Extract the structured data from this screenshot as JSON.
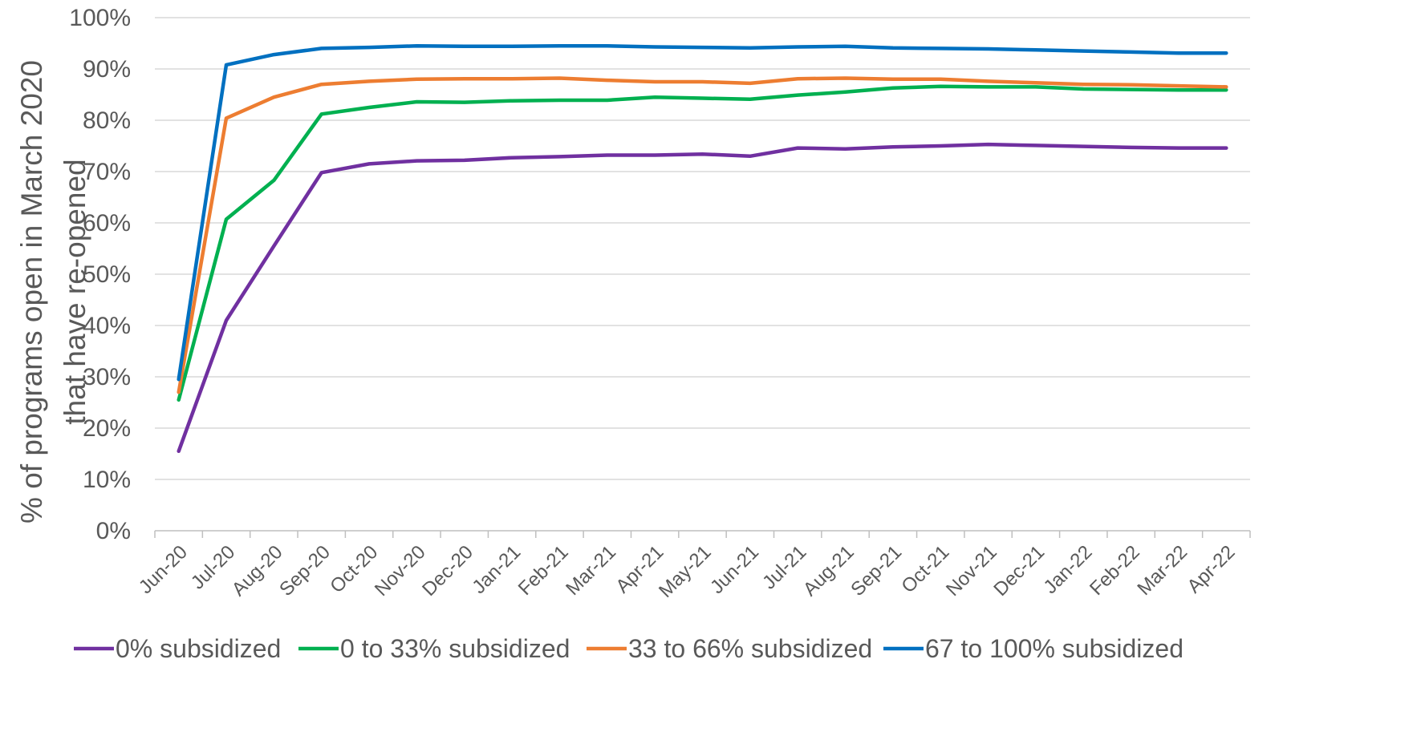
{
  "chart_data": {
    "type": "line",
    "title": "",
    "xlabel": "",
    "ylabel_line1": "% of programs open in March 2020",
    "ylabel_line2": "that have re-opened",
    "ylim": [
      0,
      100
    ],
    "y_ticks": [
      "0%",
      "10%",
      "20%",
      "30%",
      "40%",
      "50%",
      "60%",
      "70%",
      "80%",
      "90%",
      "100%"
    ],
    "grid": true,
    "legend_position": "bottom",
    "x": [
      "Jun-20",
      "Jul-20",
      "Aug-20",
      "Sep-20",
      "Oct-20",
      "Nov-20",
      "Dec-20",
      "Jan-21",
      "Feb-21",
      "Mar-21",
      "Apr-21",
      "May-21",
      "Jun-21",
      "Jul-21",
      "Aug-21",
      "Sep-21",
      "Oct-21",
      "Nov-21",
      "Dec-21",
      "Jan-22",
      "Feb-22",
      "Mar-22",
      "Apr-22"
    ],
    "series": [
      {
        "name": "0% subsidized",
        "color": "#7030A0",
        "values": [
          15.5,
          41,
          55.5,
          69.8,
          71.5,
          72.1,
          72.2,
          72.7,
          72.9,
          73.2,
          73.2,
          73.4,
          73,
          74.6,
          74.4,
          74.8,
          75,
          75.3,
          75.1,
          74.9,
          74.7,
          74.6,
          74.6
        ]
      },
      {
        "name": "0 to 33% subsidized",
        "color": "#00B050",
        "values": [
          25.5,
          60.7,
          68.3,
          81.2,
          82.5,
          83.6,
          83.5,
          83.8,
          83.9,
          83.9,
          84.5,
          84.3,
          84.1,
          84.9,
          85.5,
          86.3,
          86.6,
          86.5,
          86.5,
          86.1,
          86,
          85.9,
          85.9
        ]
      },
      {
        "name": "33 to 66% subsidized",
        "color": "#ED7D31",
        "values": [
          27,
          80.4,
          84.5,
          87,
          87.6,
          88,
          88.1,
          88.1,
          88.2,
          87.8,
          87.5,
          87.5,
          87.2,
          88.1,
          88.2,
          88,
          88,
          87.6,
          87.3,
          87,
          86.9,
          86.7,
          86.5
        ]
      },
      {
        "name": "67 to 100% subsidized",
        "color": "#0070C0",
        "values": [
          29.5,
          90.8,
          92.8,
          94,
          94.2,
          94.5,
          94.4,
          94.4,
          94.5,
          94.5,
          94.3,
          94.2,
          94.1,
          94.3,
          94.4,
          94.1,
          94,
          93.9,
          93.7,
          93.5,
          93.3,
          93.1,
          93.1
        ]
      }
    ]
  }
}
